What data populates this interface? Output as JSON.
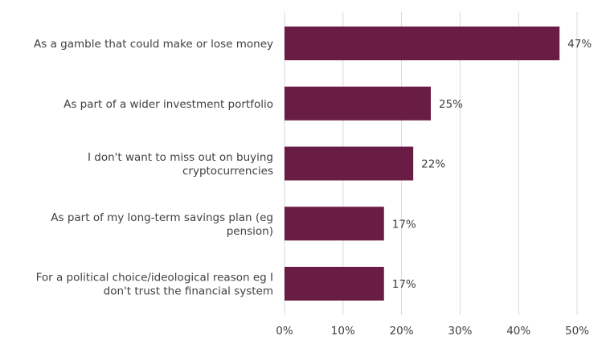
{
  "chart_data": {
    "type": "bar",
    "orientation": "horizontal",
    "categories": [
      [
        "As a gamble that could make or lose money"
      ],
      [
        "As part of a wider investment portfolio"
      ],
      [
        "I don't want to miss out on buying",
        "cryptocurrencies"
      ],
      [
        "As part of my long-term savings plan (eg",
        "pension)"
      ],
      [
        "For a political choice/ideological reason eg I",
        "don't trust the financial system"
      ]
    ],
    "values": [
      47,
      25,
      22,
      17,
      17
    ],
    "data_labels": [
      "47%",
      "25%",
      "22%",
      "17%",
      "17%"
    ],
    "xlim": [
      0,
      50
    ],
    "xticks": [
      0,
      10,
      20,
      30,
      40,
      50
    ],
    "xtick_labels": [
      "0%",
      "10%",
      "20%",
      "30%",
      "40%",
      "50%"
    ],
    "grid": "vertical",
    "legend": "none",
    "bar_color": "#6a1d44",
    "grid_color": "#d9d9d9",
    "text_color": "#404040"
  }
}
